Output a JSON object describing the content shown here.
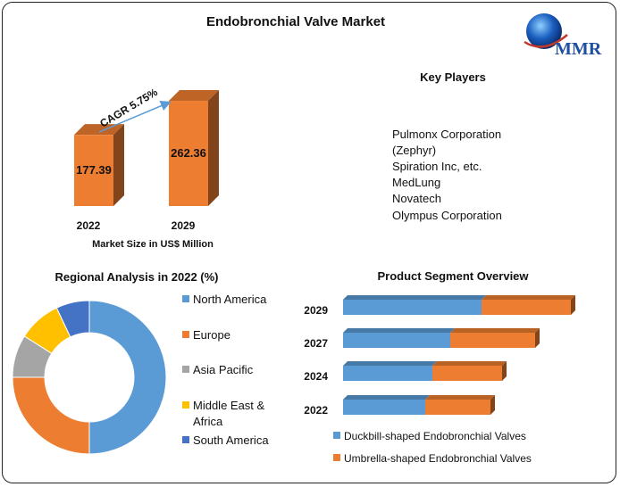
{
  "title": "Endobronchial Valve Market",
  "logo": {
    "text": "MMR",
    "icon": "globe-icon"
  },
  "market_size": {
    "cagr_label": "CAGR 5.75%",
    "caption": "Market Size in US$ Million",
    "bar_color": "#ED7D31"
  },
  "key_players": {
    "heading": "Key Players",
    "items": [
      "Pulmonx Corporation",
      "(Zephyr)",
      "Spiration Inc, etc.",
      "MedLung",
      "Novatech",
      "Olympus Corporation"
    ]
  },
  "regional": {
    "title": "Regional Analysis in 2022 (%)",
    "legend": [
      {
        "lines": [
          "North America"
        ],
        "color": "#5B9BD5"
      },
      {
        "lines": [
          "Europe"
        ],
        "color": "#ED7D31"
      },
      {
        "lines": [
          "Asia Pacific"
        ],
        "color": "#A5A5A5"
      },
      {
        "lines": [
          "Middle East &",
          "Africa"
        ],
        "color": "#FFC000"
      },
      {
        "lines": [
          "South America"
        ],
        "color": "#4472C4"
      }
    ]
  },
  "segment": {
    "title": "Product Segment Overview",
    "legend": [
      {
        "label": "Duckbill-shaped Endobronchial Valves",
        "color": "#5B9BD5"
      },
      {
        "label": "Umbrella-shaped Endobronchial Valves",
        "color": "#ED7D31"
      }
    ]
  },
  "chart_data": [
    {
      "type": "bar",
      "title": "",
      "categories": [
        "2022",
        "2029"
      ],
      "values": [
        177.39,
        262.36
      ],
      "xlabel": "Market Size in US$ Million",
      "ylabel": "",
      "ylim": [
        0,
        280
      ],
      "grid": false
    },
    {
      "type": "pie",
      "title": "Regional Analysis in 2022 (%)",
      "labels": [
        "North America",
        "Europe",
        "Asia Pacific",
        "Middle East & Africa",
        "South America"
      ],
      "values": [
        50,
        25,
        9,
        9,
        7
      ],
      "legend": "right"
    },
    {
      "type": "bar",
      "orientation": "horizontal",
      "stacked": true,
      "title": "Product Segment Overview",
      "categories": [
        "2029",
        "2027",
        "2024",
        "2022"
      ],
      "series": [
        {
          "name": "Duckbill-shaped Endobronchial Valves",
          "values": [
            155,
            120,
            100,
            92
          ]
        },
        {
          "name": "Umbrella-shaped Endobronchial Valves",
          "values": [
            100,
            95,
            78,
            73
          ]
        }
      ],
      "legend": "bottom",
      "grid": false
    }
  ]
}
